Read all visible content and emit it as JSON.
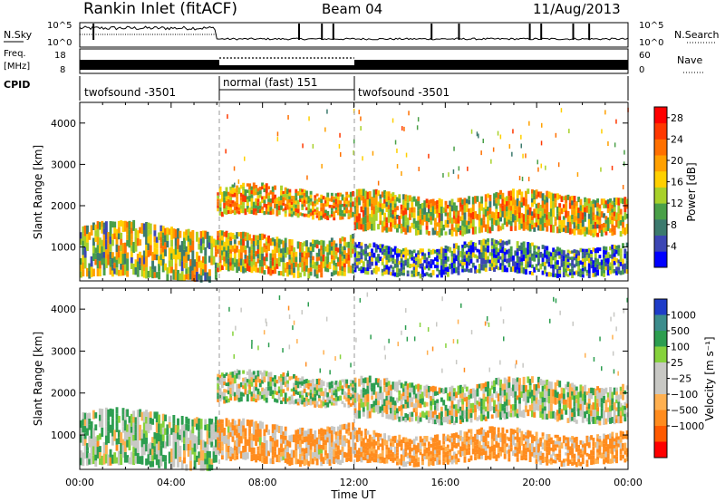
{
  "header": {
    "station": "Rankin Inlet (fitACF)",
    "beam": "Beam 04",
    "date": "11/Aug/2013"
  },
  "noise_panel": {
    "left_label": "N.Sky",
    "right_label": "N.Search",
    "left_ticks": [
      "10^5",
      "10^0"
    ],
    "right_ticks": [
      "10^5",
      "10^0"
    ]
  },
  "freq_panel": {
    "left_label_top": "Freq.",
    "left_label_bottom": "[MHz]",
    "right_label": "Nave",
    "left_ticks": [
      "18",
      "8"
    ],
    "right_ticks": [
      "60",
      "0"
    ]
  },
  "cpid": {
    "label": "CPID",
    "segments": [
      {
        "name": "twofsound -3501",
        "start_hour": 0,
        "end_hour": 6
      },
      {
        "name": "normal (fast) 151",
        "start_hour": 6,
        "end_hour": 12
      },
      {
        "name": "twofsound -3501",
        "start_hour": 12,
        "end_hour": 24
      }
    ]
  },
  "chart_data": [
    {
      "type": "heatmap",
      "title": "",
      "xlabel": "Time UT",
      "ylabel": "Slant Range [km]",
      "xlim": [
        0,
        24
      ],
      "ylim": [
        180,
        4500
      ],
      "x_ticks": [
        "00:00",
        "04:00",
        "08:00",
        "12:00",
        "16:00",
        "20:00",
        "00:00"
      ],
      "y_ticks": [
        1000,
        2000,
        3000,
        4000
      ],
      "colorbar": {
        "label": "Power [dB]",
        "ticks": [
          4,
          8,
          12,
          16,
          20,
          24,
          28
        ],
        "colors": [
          "#0000ff",
          "#3c46b4",
          "#3c7a6e",
          "#4aa048",
          "#a8d12a",
          "#ffd000",
          "#ffa000",
          "#ff7000",
          "#ff3800",
          "#ff0000"
        ],
        "range": [
          0,
          30
        ]
      },
      "bands": [
        {
          "start_hour": 0,
          "end_hour": 6,
          "min_km": 200,
          "max_km": 1550,
          "typical_value": 14
        },
        {
          "start_hour": 6,
          "end_hour": 12,
          "min_km": 1700,
          "max_km": 2450,
          "typical_value": 18
        },
        {
          "start_hour": 6,
          "end_hour": 12,
          "min_km": 300,
          "max_km": 1300,
          "typical_value": 16
        },
        {
          "start_hour": 12,
          "end_hour": 24,
          "min_km": 1300,
          "max_km": 2300,
          "typical_value": 17
        },
        {
          "start_hour": 12,
          "end_hour": 24,
          "min_km": 300,
          "max_km": 1100,
          "typical_value": 8
        }
      ]
    },
    {
      "type": "heatmap",
      "title": "",
      "xlabel": "Time UT",
      "ylabel": "Slant Range [km]",
      "xlim": [
        0,
        24
      ],
      "ylim": [
        180,
        4500
      ],
      "x_ticks": [
        "00:00",
        "04:00",
        "08:00",
        "12:00",
        "16:00",
        "20:00",
        "00:00"
      ],
      "y_ticks": [
        1000,
        2000,
        3000,
        4000
      ],
      "colorbar": {
        "label": "Velocity [m s⁻¹]",
        "ticks": [
          "1000",
          "500",
          "100",
          "25",
          "−25",
          "−100",
          "−500",
          "−1000"
        ],
        "colors": [
          "#1e3cc8",
          "#3c8c8c",
          "#2d9e50",
          "#86d23c",
          "#c8c8c4",
          "#c8c8c4",
          "#ffb050",
          "#ff8c1e",
          "#ff5a00",
          "#ff0000"
        ]
      },
      "bands": [
        {
          "start_hour": 0,
          "end_hour": 6,
          "min_km": 200,
          "max_km": 1550,
          "typical_value": 25
        },
        {
          "start_hour": 6,
          "end_hour": 12,
          "min_km": 1700,
          "max_km": 2450,
          "typical_value": 0
        },
        {
          "start_hour": 6,
          "end_hour": 12,
          "min_km": 300,
          "max_km": 1300,
          "typical_value": -100
        },
        {
          "start_hour": 12,
          "end_hour": 24,
          "min_km": 1300,
          "max_km": 2300,
          "typical_value": 0
        },
        {
          "start_hour": 12,
          "end_hour": 24,
          "min_km": 300,
          "max_km": 1100,
          "typical_value": -150
        }
      ]
    }
  ]
}
